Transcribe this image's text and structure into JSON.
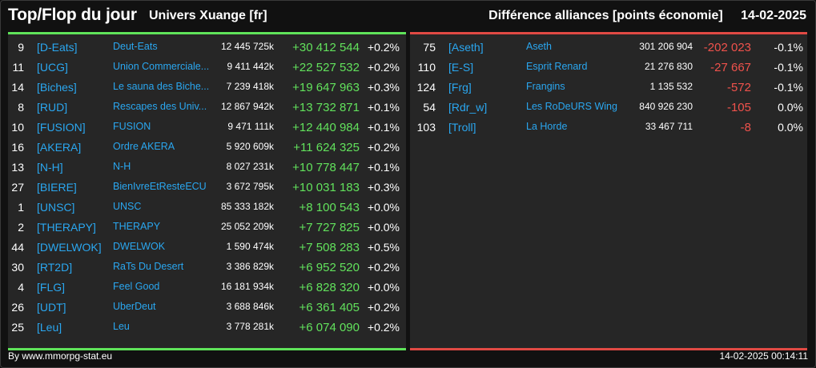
{
  "header": {
    "title": "Top/Flop du jour",
    "universe": "Univers Xuange [fr]",
    "section": "Différence alliances [points économie]",
    "date": "14-02-2025"
  },
  "colors": {
    "top_accent": "#5fe35a",
    "flop_accent": "#e04a44",
    "tag_link": "#2aa7f0",
    "positive": "#62e25c",
    "negative": "#f0524c"
  },
  "top": [
    {
      "rank": "9",
      "tag": "[D-Eats]",
      "name": "Deut-Eats",
      "points": "12 445 725k",
      "diff": "+30 412 544",
      "pct": "+0.2%"
    },
    {
      "rank": "11",
      "tag": "[UCG]",
      "name": "Union Commerciale...",
      "points": "9 411 442k",
      "diff": "+22 527 532",
      "pct": "+0.2%"
    },
    {
      "rank": "14",
      "tag": "[Biches]",
      "name": "Le sauna des Biche...",
      "points": "7 239 418k",
      "diff": "+19 647 963",
      "pct": "+0.3%"
    },
    {
      "rank": "8",
      "tag": "[RUD]",
      "name": "Rescapes des Univ...",
      "points": "12 867 942k",
      "diff": "+13 732 871",
      "pct": "+0.1%"
    },
    {
      "rank": "10",
      "tag": "[FUSION]",
      "name": "FUSION",
      "points": "9 471 111k",
      "diff": "+12 440 984",
      "pct": "+0.1%"
    },
    {
      "rank": "16",
      "tag": "[AKERA]",
      "name": "Ordre AKERA",
      "points": "5 920 609k",
      "diff": "+11 624 325",
      "pct": "+0.2%"
    },
    {
      "rank": "13",
      "tag": "[N-H]",
      "name": "N-H",
      "points": "8 027 231k",
      "diff": "+10 778 447",
      "pct": "+0.1%"
    },
    {
      "rank": "27",
      "tag": "[BIERE]",
      "name": "BienIvreEtResteECU",
      "points": "3 672 795k",
      "diff": "+10 031 183",
      "pct": "+0.3%"
    },
    {
      "rank": "1",
      "tag": "[UNSC]",
      "name": "UNSC",
      "points": "85 333 182k",
      "diff": "+8 100 543",
      "pct": "+0.0%"
    },
    {
      "rank": "2",
      "tag": "[THERAPY]",
      "name": "THERAPY",
      "points": "25 052 209k",
      "diff": "+7 727 825",
      "pct": "+0.0%"
    },
    {
      "rank": "44",
      "tag": "[DWELWOK]",
      "name": "DWELWOK",
      "points": "1 590 474k",
      "diff": "+7 508 283",
      "pct": "+0.5%"
    },
    {
      "rank": "30",
      "tag": "[RT2D]",
      "name": "RaTs Du Desert",
      "points": "3 386 829k",
      "diff": "+6 952 520",
      "pct": "+0.2%"
    },
    {
      "rank": "4",
      "tag": "[FLG]",
      "name": "Feel Good",
      "points": "16 181 934k",
      "diff": "+6 828 320",
      "pct": "+0.0%"
    },
    {
      "rank": "26",
      "tag": "[UDT]",
      "name": "UberDeut",
      "points": "3 688 846k",
      "diff": "+6 361 405",
      "pct": "+0.2%"
    },
    {
      "rank": "25",
      "tag": "[Leu]",
      "name": "Leu",
      "points": "3 778 281k",
      "diff": "+6 074 090",
      "pct": "+0.2%"
    }
  ],
  "flop": [
    {
      "rank": "75",
      "tag": "[Aseth]",
      "name": "Aseth",
      "points": "301 206 904",
      "diff": "-202 023",
      "pct": "-0.1%"
    },
    {
      "rank": "110",
      "tag": "[E-S]",
      "name": "Esprit Renard",
      "points": "21 276 830",
      "diff": "-27 667",
      "pct": "-0.1%"
    },
    {
      "rank": "124",
      "tag": "[Frg]",
      "name": "Frangins",
      "points": "1 135 532",
      "diff": "-572",
      "pct": "-0.1%"
    },
    {
      "rank": "54",
      "tag": "[Rdr_w]",
      "name": "Les RoDeURS Wing",
      "points": "840 926 230",
      "diff": "-105",
      "pct": "0.0%"
    },
    {
      "rank": "103",
      "tag": "[Troll]",
      "name": "La Horde",
      "points": "33 467 711",
      "diff": "-8",
      "pct": "0.0%"
    }
  ],
  "footer": {
    "source": "By www.mmorpg-stat.eu",
    "timestamp": "14-02-2025 00:14:11"
  }
}
